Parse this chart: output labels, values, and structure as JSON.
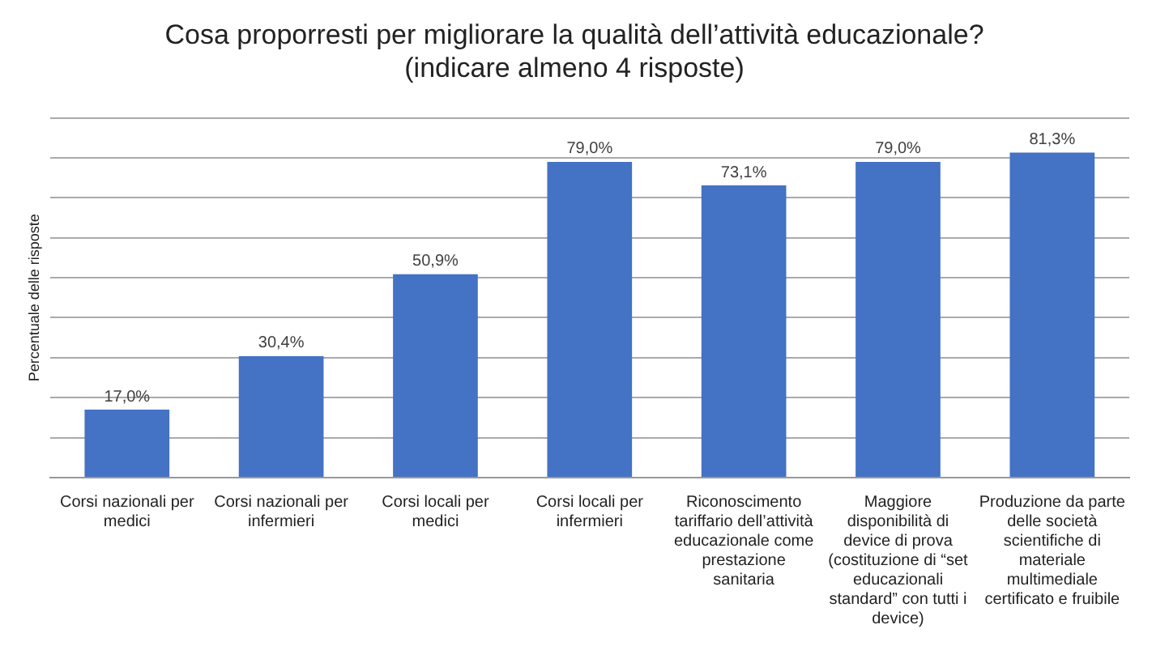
{
  "chart_data": {
    "type": "bar",
    "title": "Cosa proporresti per migliorare la qualità dell’attività educazionale?",
    "subtitle": "(indicare almeno 4 risposte)",
    "ylabel": "Percentuale delle risposte",
    "categories": [
      "Corsi nazionali per medici",
      "Corsi nazionali per infermieri",
      "Corsi locali per medici",
      "Corsi locali per infermieri",
      "Riconoscimento tariffario dell’attività educazionale come prestazione sanitaria",
      "Maggiore disponibilità di device di prova (costituzione di “set educazionali standard” con tutti i device)",
      "Produzione da parte delle società scientifiche di materiale multimediale certificato e fruibile"
    ],
    "values": [
      17.0,
      30.4,
      50.9,
      79.0,
      73.1,
      79.0,
      81.3
    ],
    "value_labels": [
      "17,0%",
      "30,4%",
      "50,9%",
      "79,0%",
      "73,1%",
      "79,0%",
      "81,3%"
    ],
    "color": "#4472c4",
    "ylim": [
      0,
      90
    ],
    "yticks": [
      {
        "value": 0,
        "label": null
      },
      {
        "value": 10,
        "label": null
      },
      {
        "value": 20,
        "label": null
      },
      {
        "value": 30,
        "label": null
      },
      {
        "value": 40,
        "label": null
      },
      {
        "value": 50,
        "label": null
      },
      {
        "value": 60,
        "label": null
      },
      {
        "value": 70,
        "label": null
      },
      {
        "value": 80,
        "label": null
      },
      {
        "value": 90,
        "label": null
      }
    ],
    "grid": "y",
    "tick_labels": "x",
    "legend": false
  }
}
